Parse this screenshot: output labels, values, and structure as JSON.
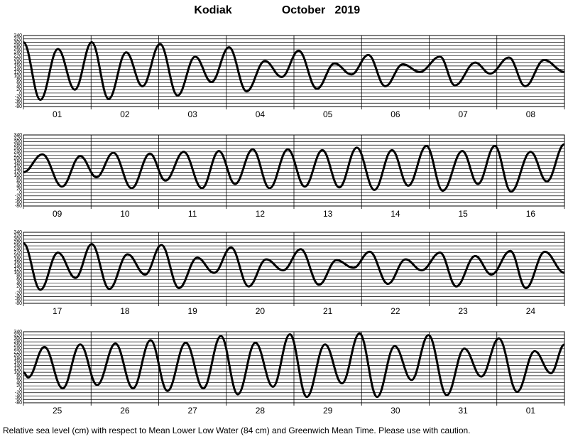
{
  "title": "Kodiak",
  "subtitle": "October   2019",
  "footnote": "Relative sea level (cm) with respect to Mean Lower Low Water (84 cm) and Greenwich Mean Time. Please use with caution.",
  "chart_data": [
    {
      "type": "line",
      "categories": [
        "01",
        "02",
        "03",
        "04",
        "05",
        "06",
        "07",
        "08"
      ],
      "x": [
        0,
        0.25,
        0.51,
        0.76,
        1.01,
        1.26,
        1.52,
        1.76,
        2.02,
        2.28,
        2.54,
        2.78,
        3.04,
        3.3,
        3.57,
        3.82,
        4.07,
        4.34,
        4.6,
        4.85,
        5.1,
        5.35,
        5.61,
        5.86,
        6.16,
        6.38,
        6.68,
        6.9,
        7.18,
        7.42,
        7.7,
        8
      ],
      "series": [
        {
          "color": "#000000",
          "values": [
            300,
            -40,
            260,
            20,
            300,
            -35,
            240,
            40,
            290,
            -15,
            215,
            65,
            270,
            10,
            190,
            95,
            250,
            25,
            175,
            110,
            225,
            40,
            170,
            125,
            215,
            45,
            180,
            115,
            210,
            40,
            195,
            125
          ]
        }
      ],
      "xlim": [
        0,
        8
      ],
      "xticks": [
        0,
        1,
        2,
        3,
        4,
        5,
        6,
        7,
        8
      ],
      "ylim": [
        -80,
        340
      ],
      "yticks": [
        -80,
        -60,
        -40,
        -20,
        0,
        20,
        40,
        60,
        80,
        100,
        120,
        140,
        160,
        180,
        200,
        220,
        240,
        260,
        280,
        300,
        320,
        340
      ],
      "grid": true
    },
    {
      "type": "line",
      "categories": [
        "09",
        "10",
        "11",
        "12",
        "13",
        "14",
        "15",
        "16"
      ],
      "x": [
        0,
        0.28,
        0.57,
        0.84,
        1.08,
        1.33,
        1.6,
        1.87,
        2.1,
        2.37,
        2.64,
        2.89,
        3.13,
        3.39,
        3.64,
        3.91,
        4.16,
        4.42,
        4.67,
        4.93,
        5.19,
        5.45,
        5.69,
        5.96,
        6.2,
        6.49,
        6.72,
        6.97,
        7.21,
        7.5,
        7.74,
        8
      ],
      "series": [
        {
          "color": "#000000",
          "values": [
            120,
            225,
            35,
            215,
            90,
            235,
            25,
            230,
            70,
            240,
            25,
            245,
            50,
            255,
            25,
            255,
            35,
            250,
            30,
            265,
            15,
            250,
            40,
            275,
            10,
            245,
            50,
            275,
            5,
            240,
            65,
            285
          ]
        }
      ],
      "xlim": [
        0,
        8
      ],
      "xticks": [
        0,
        1,
        2,
        3,
        4,
        5,
        6,
        7,
        8
      ],
      "ylim": [
        -80,
        340
      ],
      "yticks": [
        -80,
        -60,
        -40,
        -20,
        0,
        20,
        40,
        60,
        80,
        100,
        120,
        140,
        160,
        180,
        200,
        220,
        240,
        260,
        280,
        300,
        320,
        340
      ],
      "grid": true
    },
    {
      "type": "line",
      "categories": [
        "17",
        "18",
        "19",
        "20",
        "21",
        "22",
        "23",
        "24"
      ],
      "x": [
        0,
        0.25,
        0.51,
        0.77,
        1.01,
        1.27,
        1.54,
        1.8,
        2.04,
        2.3,
        2.57,
        2.82,
        3.07,
        3.33,
        3.59,
        3.84,
        4.1,
        4.37,
        4.63,
        4.88,
        5.12,
        5.39,
        5.65,
        5.89,
        6.16,
        6.4,
        6.68,
        6.92,
        7.2,
        7.43,
        7.71,
        8
      ],
      "series": [
        {
          "color": "#000000",
          "values": [
            275,
            0,
            220,
            70,
            270,
            5,
            210,
            90,
            265,
            10,
            190,
            100,
            250,
            20,
            180,
            115,
            240,
            30,
            175,
            130,
            225,
            35,
            180,
            115,
            220,
            20,
            200,
            90,
            230,
            10,
            225,
            100
          ]
        }
      ],
      "xlim": [
        0,
        8
      ],
      "xticks": [
        0,
        1,
        2,
        3,
        4,
        5,
        6,
        7,
        8
      ],
      "ylim": [
        -80,
        340
      ],
      "yticks": [
        -80,
        -60,
        -40,
        -20,
        0,
        20,
        40,
        60,
        80,
        100,
        120,
        140,
        160,
        180,
        200,
        220,
        240,
        260,
        280,
        300,
        320,
        340
      ],
      "grid": true
    },
    {
      "type": "line",
      "categories": [
        "25",
        "26",
        "27",
        "28",
        "29",
        "30",
        "31",
        "01"
      ],
      "x": [
        0,
        0.07,
        0.31,
        0.58,
        0.84,
        1.09,
        1.36,
        1.62,
        1.88,
        2.13,
        2.4,
        2.66,
        2.92,
        3.17,
        3.43,
        3.69,
        3.94,
        4.19,
        4.46,
        4.71,
        4.97,
        5.23,
        5.49,
        5.74,
        5.99,
        6.26,
        6.52,
        6.77,
        7.03,
        7.3,
        7.56,
        7.8,
        8
      ],
      "series": [
        {
          "color": "#000000",
          "values": [
            100,
            70,
            250,
            5,
            265,
            25,
            270,
            5,
            290,
            -10,
            275,
            5,
            315,
            -30,
            275,
            15,
            325,
            -45,
            265,
            35,
            330,
            -45,
            255,
            55,
            320,
            -35,
            240,
            75,
            300,
            -15,
            225,
            95,
            265
          ]
        }
      ],
      "xlim": [
        0,
        8
      ],
      "xticks": [
        0,
        1,
        2,
        3,
        4,
        5,
        6,
        7,
        8
      ],
      "ylim": [
        -80,
        340
      ],
      "yticks": [
        -80,
        -60,
        -40,
        -20,
        0,
        20,
        40,
        60,
        80,
        100,
        120,
        140,
        160,
        180,
        200,
        220,
        240,
        260,
        280,
        300,
        320,
        340
      ],
      "grid": true
    }
  ]
}
